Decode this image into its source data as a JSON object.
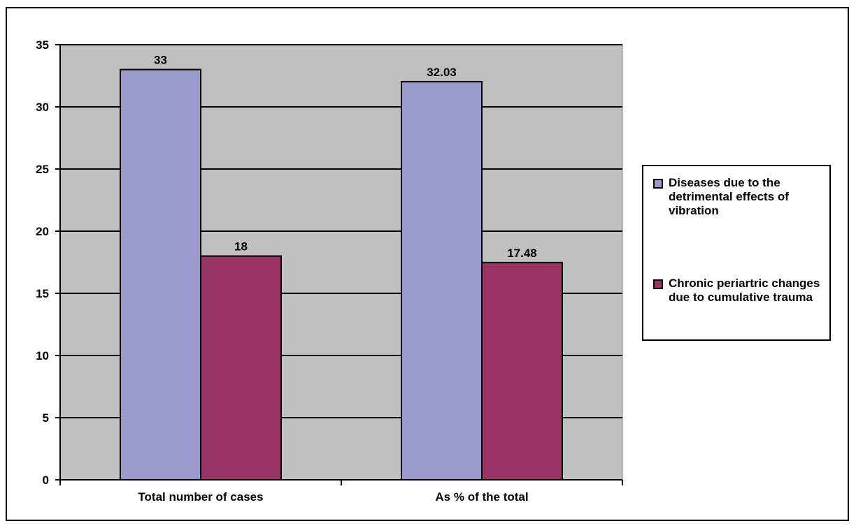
{
  "chart_data": {
    "type": "bar",
    "categories": [
      "Total number of cases",
      "As % of the total"
    ],
    "series": [
      {
        "name": "Diseases due to the detrimental effects of vibration",
        "values": [
          33,
          32.03
        ],
        "color": "#9999cc"
      },
      {
        "name": "Chronic periartric changes due to cumulative trauma",
        "values": [
          18,
          17.48
        ],
        "color": "#993366"
      }
    ],
    "data_labels": [
      [
        "33",
        "32.03"
      ],
      [
        "18",
        "17.48"
      ]
    ],
    "ylim": [
      0,
      35
    ],
    "yticks": [
      0,
      5,
      10,
      15,
      20,
      25,
      30,
      35
    ],
    "grid": true,
    "plot_background": "#c0c0c0",
    "legend_position": "right",
    "title": "",
    "xlabel": "",
    "ylabel": ""
  }
}
